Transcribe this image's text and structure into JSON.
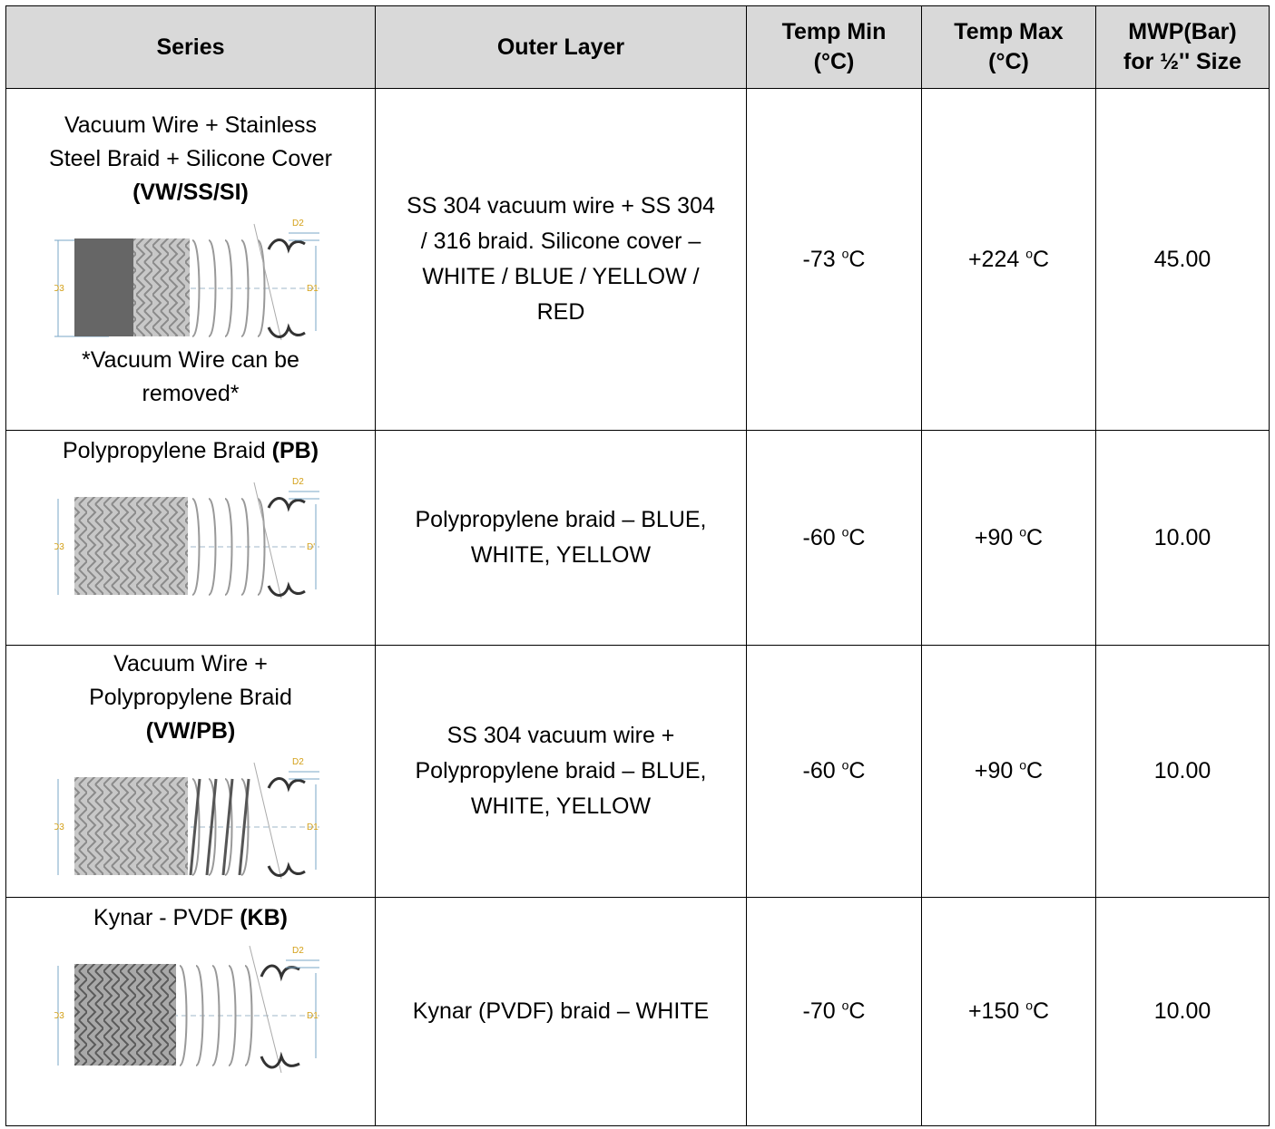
{
  "header": {
    "series": "Series",
    "outer_layer": "Outer Layer",
    "temp_min_line1": "Temp Min",
    "temp_min_line2": "(°C)",
    "temp_max_line1": "Temp Max",
    "temp_max_line2": "(°C)",
    "mwp_line1": "MWP(Bar)",
    "mwp_line2": "for ½'' Size"
  },
  "rows": [
    {
      "series_lines": [
        "Vacuum Wire + Stainless",
        "Steel Braid + Silicone Cover"
      ],
      "code": "(VW/SS/SI)",
      "diagram": {
        "d1": "D1",
        "d2": "D2",
        "d3": "D3"
      },
      "note_line1": "*Vacuum Wire can be",
      "note_line2": "removed*",
      "outer_layer_lines": [
        "SS 304 vacuum wire + SS 304",
        "/ 316 braid. Silicone cover –",
        "WHITE / BLUE / YELLOW /",
        "RED"
      ],
      "temp_min": "-73",
      "temp_max": "+224",
      "unit": "C",
      "mwp": "45.00"
    },
    {
      "series_lines": [
        "Polypropylene Braid"
      ],
      "code": "(PB)",
      "diagram": {
        "d1": "D'",
        "d2": "D2",
        "d3": "D3"
      },
      "outer_layer_lines": [
        "Polypropylene braid – BLUE,",
        "WHITE, YELLOW"
      ],
      "temp_min": "-60",
      "temp_max": "+90",
      "unit": "C",
      "mwp": "10.00"
    },
    {
      "series_lines": [
        "Vacuum Wire +",
        "Polypropylene Braid"
      ],
      "code": "(VW/PB)",
      "diagram": {
        "d1": "D1",
        "d2": "D2",
        "d3": "D3"
      },
      "outer_layer_lines": [
        "SS 304 vacuum wire +",
        "Polypropylene braid – BLUE,",
        "WHITE, YELLOW"
      ],
      "temp_min": "-60",
      "temp_max": "+90",
      "unit": "C",
      "mwp": "10.00"
    },
    {
      "series_lines": [
        "Kynar - PVDF"
      ],
      "code": "(KB)",
      "diagram": {
        "d1": "D1",
        "d2": "D2",
        "d3": "D3"
      },
      "outer_layer_lines": [
        "Kynar (PVDF) braid – WHITE"
      ],
      "temp_min": "-70",
      "temp_max": "+150",
      "unit": "C",
      "mwp": "10.00"
    }
  ],
  "degree_symbol": "o"
}
